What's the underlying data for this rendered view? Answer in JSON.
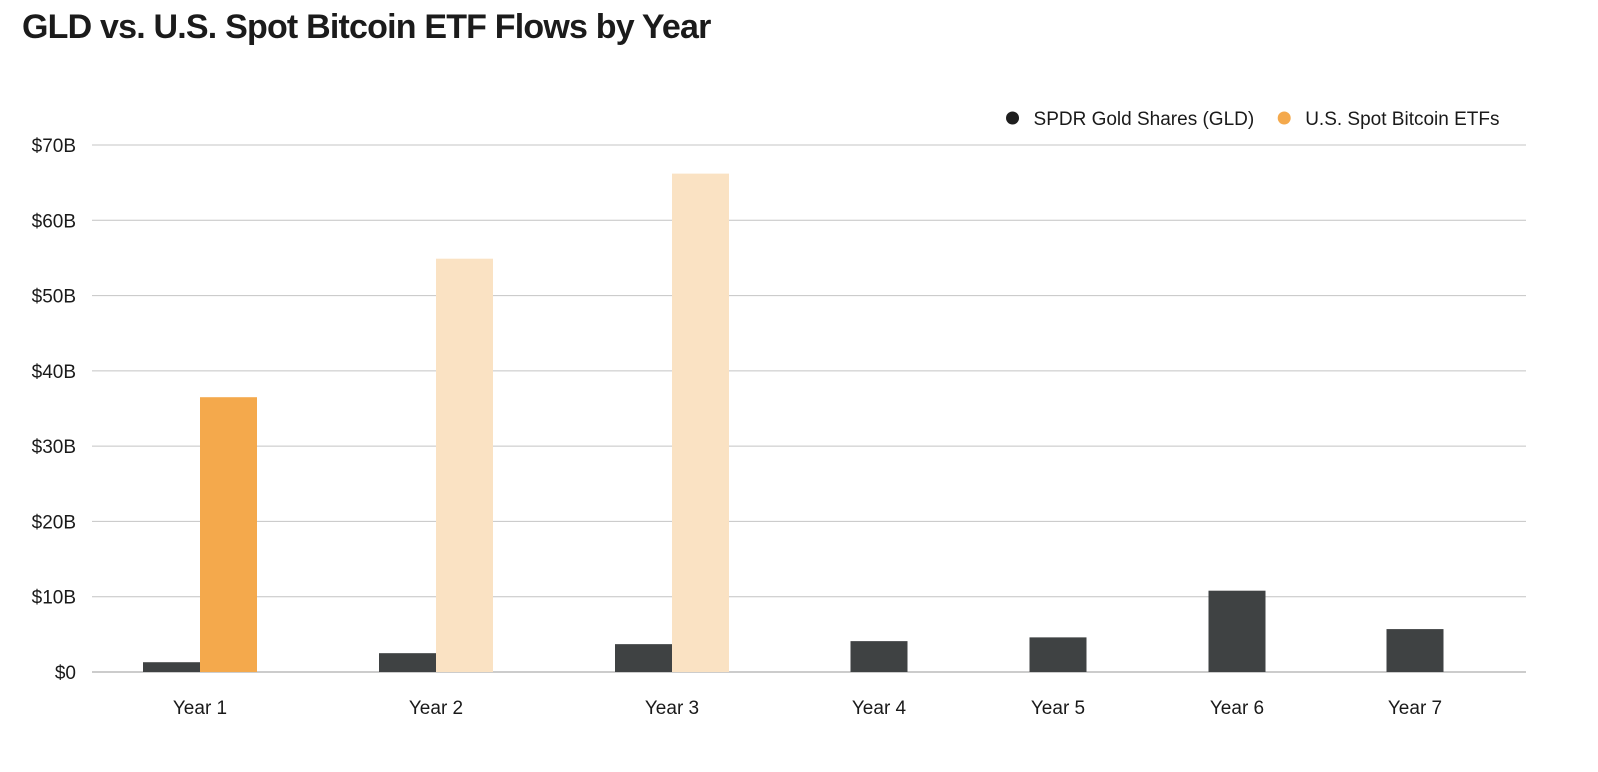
{
  "chart_data": {
    "type": "bar",
    "title": "GLD vs. U.S. Spot Bitcoin ETF Flows by Year",
    "categories": [
      "Year 1",
      "Year 2",
      "Year 3",
      "Year 4",
      "Year 5",
      "Year 6",
      "Year 7"
    ],
    "series": [
      {
        "name": "SPDR Gold Shares (GLD)",
        "color": "#3f4243",
        "values": [
          1.3,
          2.5,
          3.7,
          4.1,
          4.6,
          10.8,
          5.7
        ]
      },
      {
        "name": "U.S. Spot Bitcoin ETFs",
        "color": "#f4a94c",
        "values": [
          36.5,
          54.9,
          66.2,
          null,
          null,
          null,
          null
        ],
        "estimated": [
          false,
          true,
          true,
          null,
          null,
          null,
          null
        ],
        "estimated_color": "#fae2c3"
      }
    ],
    "y_ticks": [
      "$0",
      "$10B",
      "$20B",
      "$30B",
      "$40B",
      "$50B",
      "$60B",
      "$70B"
    ],
    "ylim": [
      0,
      70
    ],
    "y_tick_step": 10,
    "xlabel": "",
    "ylabel": "",
    "grid": true,
    "legend_position": "top-right"
  }
}
